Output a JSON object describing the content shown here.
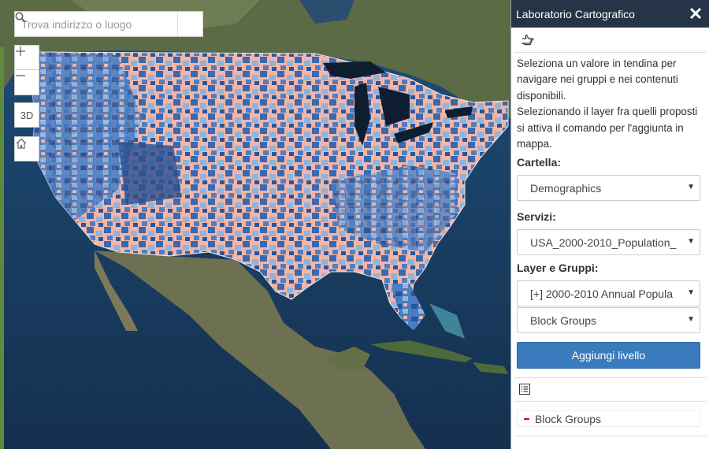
{
  "map": {
    "search": {
      "placeholder": "Trova indirizzo o luogo"
    },
    "controls": {
      "zoom_in": "+",
      "zoom_out": "−",
      "three_d": "3D"
    }
  },
  "panel": {
    "title": "Laboratorio Cartografico",
    "intro": "Seleziona un valore in tendina per navigare nei gruppi e nei contenuti disponibili.\nSelezionando il layer fra quelli proposti si attiva il comando per l'aggiunta in mappa.",
    "cartella_label": "Cartella:",
    "cartella_value": "Demographics",
    "servizi_label": "Servizi:",
    "servizi_value": "USA_2000-2010_Population_",
    "layer_label": "Layer e Gruppi:",
    "layer_value": "[+] 2000-2010 Annual Popula",
    "sublayer_value": "Block Groups",
    "add_button": "Aggiungi livello",
    "list": [
      {
        "label": "Block Groups"
      }
    ]
  },
  "colors": {
    "header_bg": "#263447",
    "accent_button": "#3a7bbd",
    "remove_red": "#d0021b",
    "choropleth_pink": "#f2b6a8",
    "choropleth_blue": "#3a69b0",
    "choropleth_light_blue": "#8db4dc"
  },
  "icons": {
    "search": "search-icon",
    "home": "home-icon",
    "close": "close-icon",
    "hint": "pointing-hand-icon",
    "list": "list-icon"
  }
}
